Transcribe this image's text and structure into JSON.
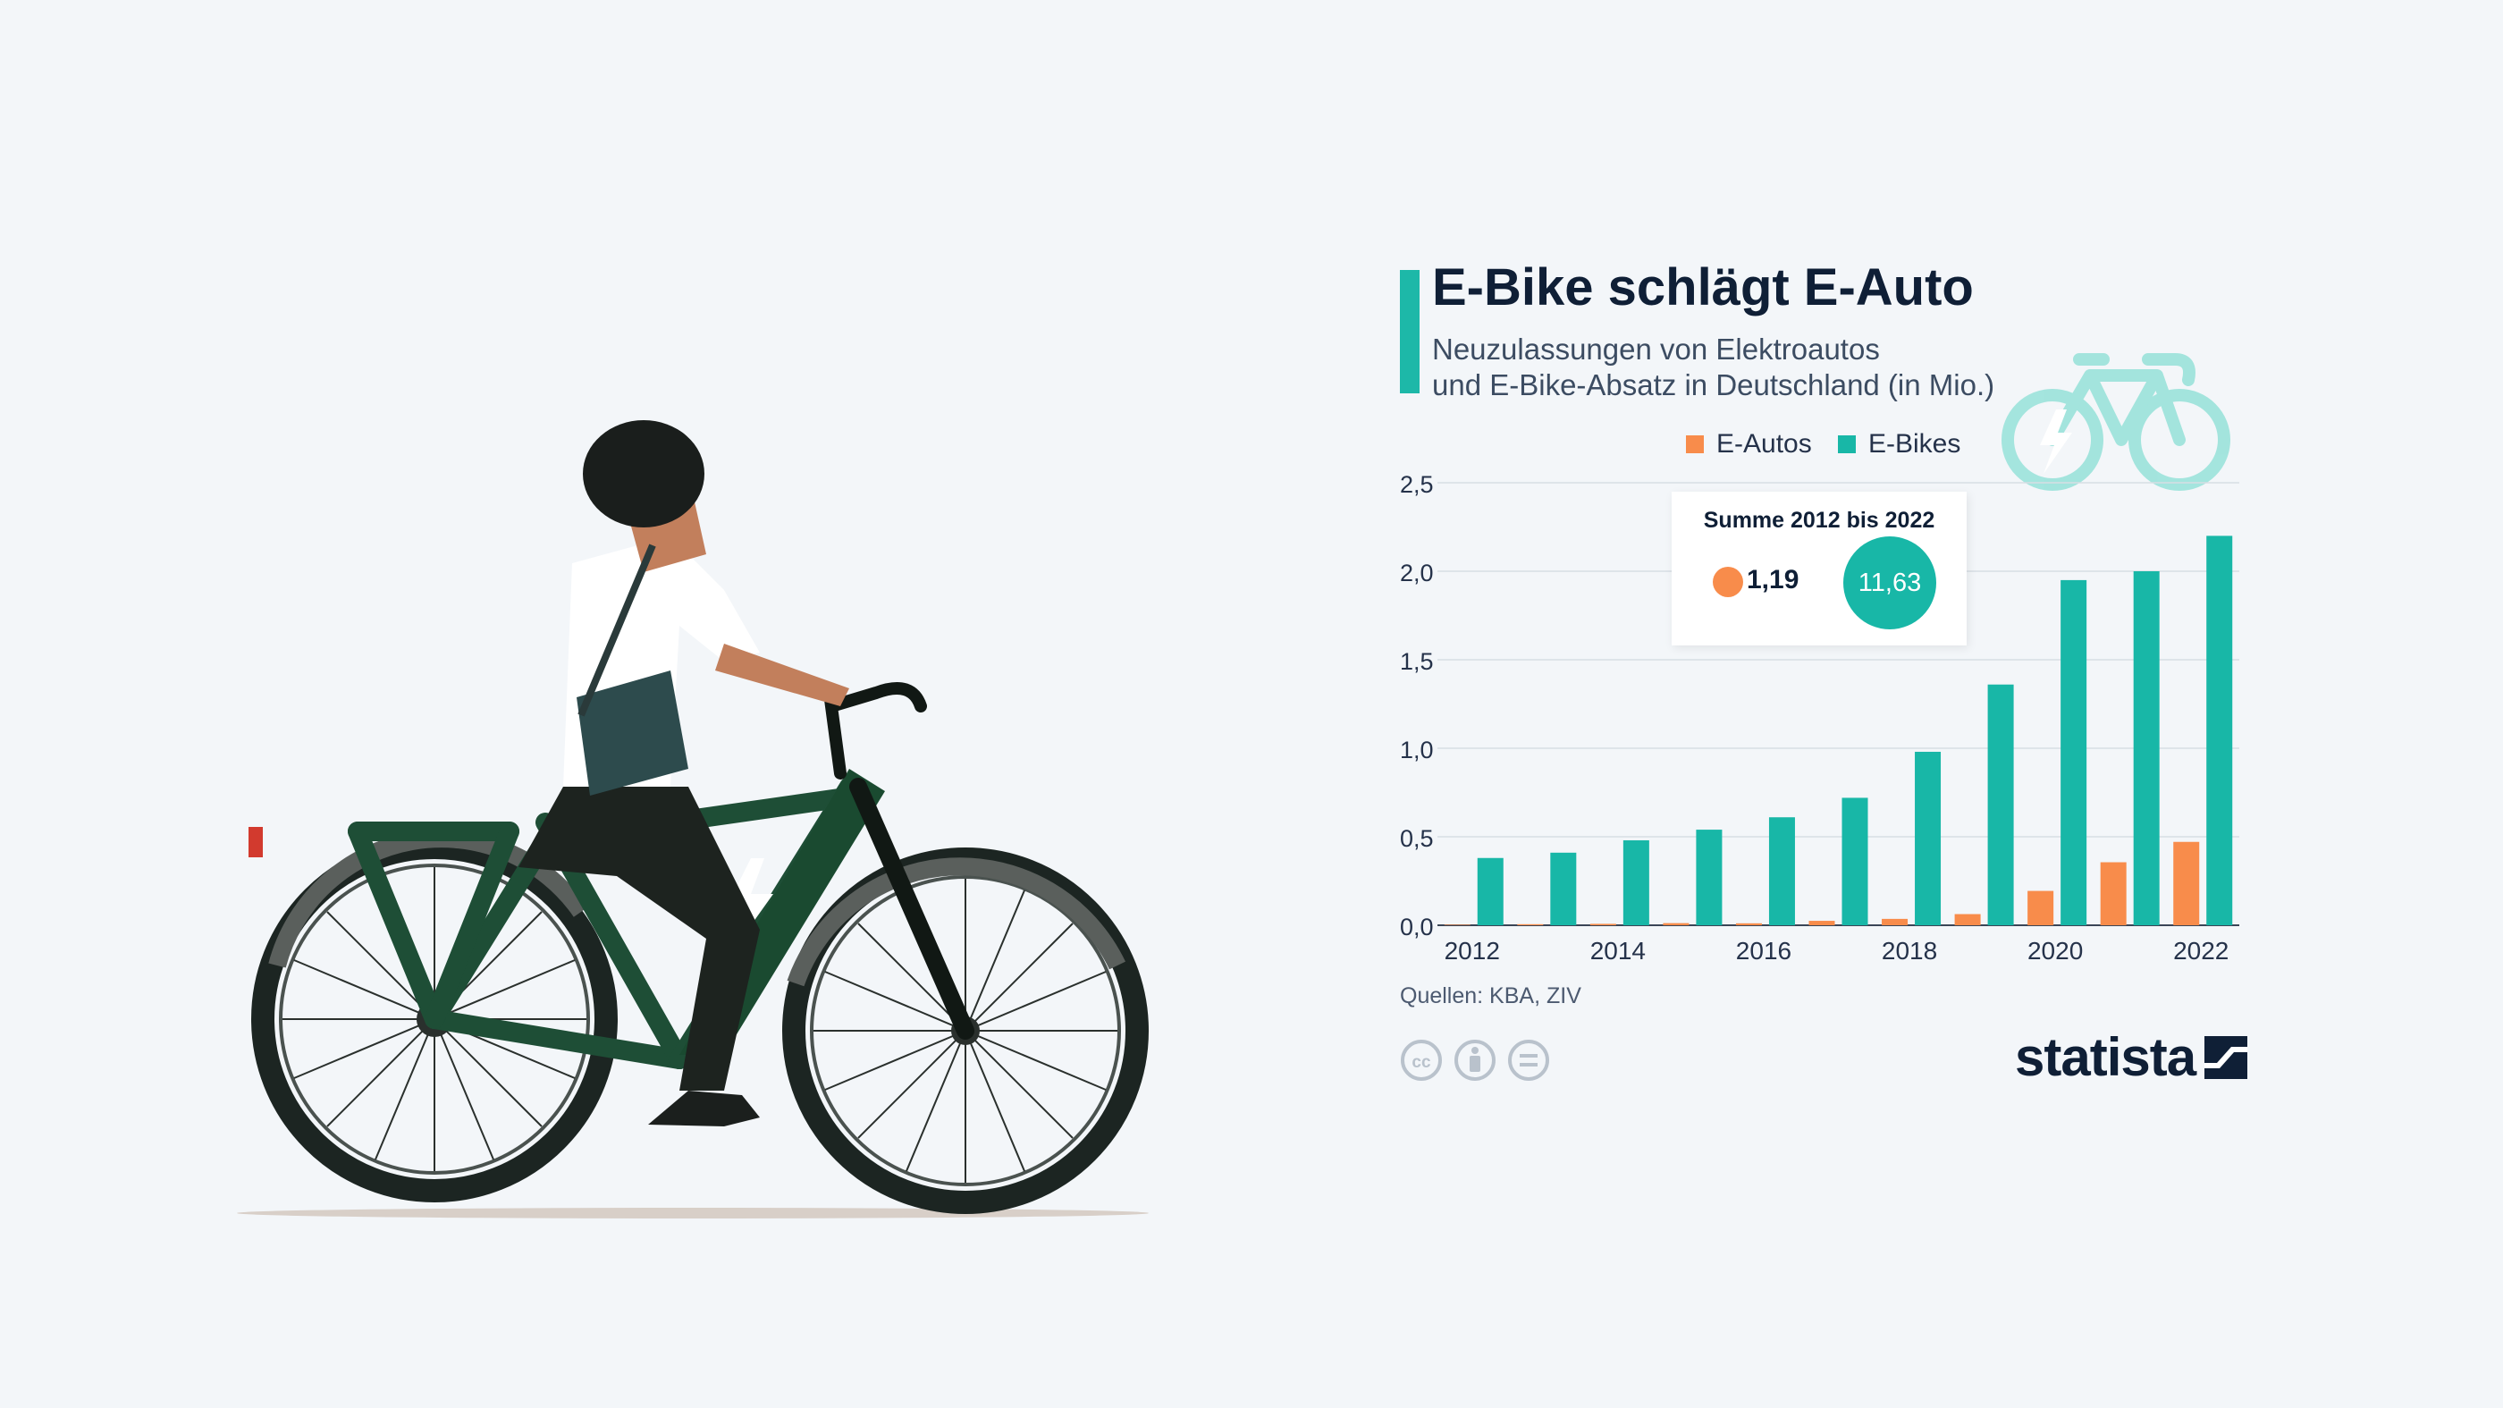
{
  "title": "E-Bike schlägt E-Auto",
  "subtitle_line1": "Neuzulassungen von Elektroautos",
  "subtitle_line2": "und E-Bike-Absatz in Deutschland (in Mio.)",
  "legend": {
    "autos": "E-Autos",
    "bikes": "E-Bikes"
  },
  "summary": {
    "title": "Summe 2012 bis 2022",
    "autos_value": "1,19",
    "bikes_value": "11,63"
  },
  "source": "Quellen: KBA, ZIV",
  "brand": "statista",
  "colors": {
    "autos": "#f88c4b",
    "bikes": "#18b7a7",
    "title_bar": "#1db8a8",
    "text": "#0f1f36"
  },
  "icons": {
    "illustration": "cyclist-on-ebike-illustration",
    "badge": "ebike-icon",
    "cc": [
      "cc-icon",
      "by-icon",
      "nd-icon"
    ],
    "logo": "statista-logo-icon"
  },
  "chart_data": {
    "type": "bar",
    "categories": [
      "2012",
      "2013",
      "2014",
      "2015",
      "2016",
      "2017",
      "2018",
      "2019",
      "2020",
      "2021",
      "2022"
    ],
    "series": [
      {
        "name": "E-Autos",
        "values": [
          0.003,
          0.006,
          0.008,
          0.012,
          0.011,
          0.025,
          0.036,
          0.063,
          0.194,
          0.356,
          0.471
        ]
      },
      {
        "name": "E-Bikes",
        "values": [
          0.38,
          0.41,
          0.48,
          0.54,
          0.61,
          0.72,
          0.98,
          1.36,
          1.95,
          2.0,
          2.2
        ]
      }
    ],
    "x_tick_labels": [
      "2012",
      "",
      "2014",
      "",
      "2016",
      "",
      "2018",
      "",
      "2020",
      "",
      "2022"
    ],
    "y_ticks": [
      0,
      0.5,
      1.0,
      1.5,
      2.0,
      2.5
    ],
    "y_tick_labels": [
      "0,0",
      "0,5",
      "1,0",
      "1,5",
      "2,0",
      "2,5"
    ],
    "ylim": [
      0,
      2.5
    ],
    "grid": true,
    "legend_position": "top-center"
  }
}
